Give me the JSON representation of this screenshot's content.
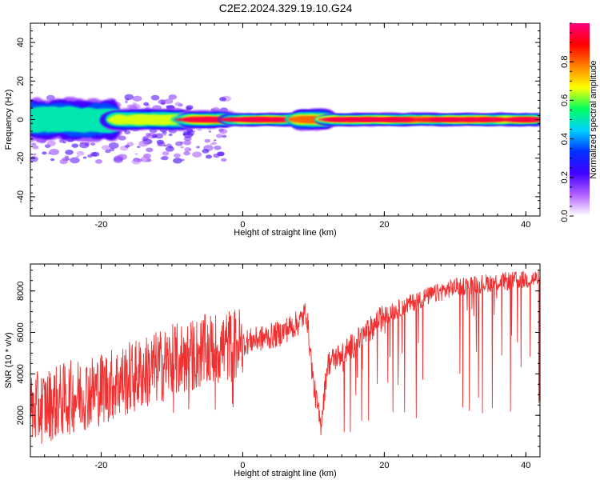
{
  "title": "C2E2.2024.329.19.10.G24",
  "chart_data": [
    {
      "type": "heatmap",
      "xlabel": "Height of straight line (km)",
      "ylabel": "Frequency (Hz)",
      "xlim": [
        -30,
        42
      ],
      "ylim": [
        -50,
        50
      ],
      "xticks": [
        -20,
        0,
        20,
        40
      ],
      "yticks": [
        -40,
        -20,
        0,
        20,
        40
      ],
      "colorbar": {
        "label": "Normalized spectral amplitude",
        "range": [
          0,
          1
        ],
        "ticks": [
          "0.0",
          "0.2",
          "0.4",
          "0.6",
          "0.8"
        ],
        "colors": [
          "#ffffff",
          "#b060ff",
          "#4000ff",
          "#0030ff",
          "#00d0ff",
          "#00ff60",
          "#ffff00",
          "#ff8000",
          "#ff0000",
          "#ff0080"
        ]
      },
      "ridge_frequency_hz": 0,
      "ridge_segments": [
        {
          "x": [
            -30,
            -18
          ],
          "spread_hz": 8,
          "peak": 0.55
        },
        {
          "x": [
            -18,
            -8
          ],
          "spread_hz": 4,
          "peak": 0.7
        },
        {
          "x": [
            -8,
            -2
          ],
          "spread_hz": 3,
          "peak": 0.95
        },
        {
          "x": [
            -2,
            8
          ],
          "spread_hz": 2,
          "peak": 0.95
        },
        {
          "x": [
            8,
            12
          ],
          "spread_hz": 4,
          "peak": 0.8
        },
        {
          "x": [
            12,
            42
          ],
          "spread_hz": 2,
          "peak": 0.95
        }
      ]
    },
    {
      "type": "line",
      "xlabel": "Height of straight line (km)",
      "ylabel": "SNR (10 * v/v)",
      "xlim": [
        -30,
        42
      ],
      "ylim": [
        0,
        9300
      ],
      "xticks": [
        -20,
        0,
        20,
        40
      ],
      "yticks": [
        2000,
        4000,
        6000,
        8000
      ],
      "color": "#f03030",
      "trend_x": [
        -30,
        -25,
        -20,
        -15,
        -10,
        -5,
        0,
        5,
        8,
        9,
        10,
        11,
        12,
        15,
        20,
        25,
        30,
        35,
        42
      ],
      "trend_y": [
        2200,
        2800,
        3300,
        3900,
        4600,
        5100,
        5500,
        5900,
        6500,
        7000,
        3500,
        1500,
        4500,
        5200,
        6800,
        7600,
        8200,
        8400,
        8600
      ],
      "noise_amplitude": 1800
    }
  ]
}
